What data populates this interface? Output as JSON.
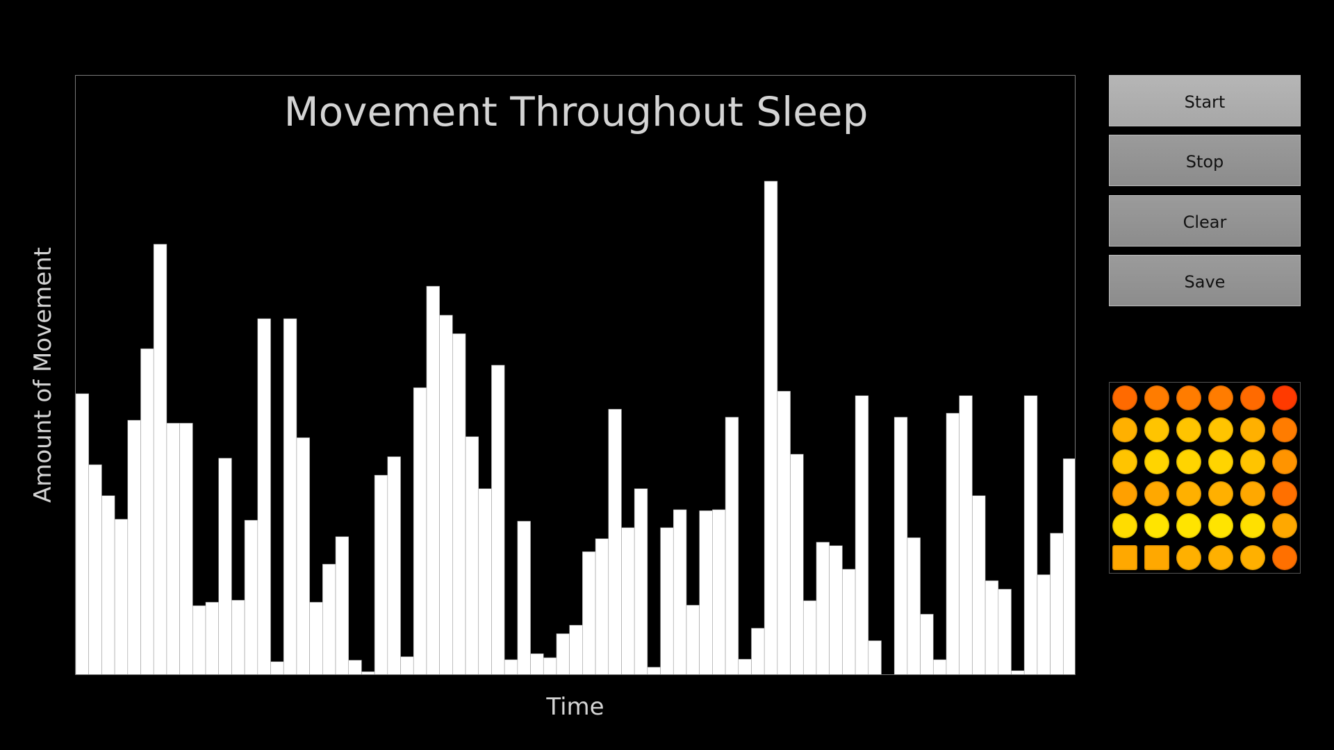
{
  "chart_data": {
    "type": "bar",
    "title": "Movement Throughout Sleep",
    "xlabel": "Time",
    "ylabel": "Amount of Movement",
    "ylim": [
      0,
      100
    ],
    "bar_color": "#ffffff",
    "bar_edge_color": "#9a9a9a",
    "background": "#000000",
    "values": [
      56.4,
      42.2,
      36,
      31.3,
      51.1,
      65.4,
      86.3,
      50.5,
      50.5,
      14,
      14.7,
      43.5,
      15.1,
      31.1,
      71.4,
      2.8,
      71.4,
      47.6,
      14.7,
      22.3,
      27.8,
      3.1,
      0.8,
      40.1,
      43.8,
      3.8,
      57.6,
      77.9,
      72.1,
      68.4,
      47.8,
      37.4,
      62.1,
      3.2,
      30.9,
      4.4,
      3.6,
      8.4,
      10.1,
      24.8,
      27.4,
      53.3,
      29.6,
      37.4,
      1.7,
      29.6,
      33.2,
      14.1,
      33,
      33.2,
      51.7,
      3.3,
      9.5,
      98.9,
      56.9,
      44.3,
      15,
      26.7,
      26,
      21.3,
      56,
      7,
      0.2,
      51.7,
      27.6,
      12.3,
      3.2,
      52.5,
      56,
      36,
      19,
      17.3,
      1,
      56,
      20.2,
      28.5,
      43.4
    ]
  },
  "buttons": {
    "start": "Start",
    "stop": "Stop",
    "clear": "Clear",
    "save": "Save"
  },
  "led_matrix": {
    "rows": [
      [
        "#ff6a00",
        "#ff7c00",
        "#ff7c00",
        "#ff7c00",
        "#ff6a00",
        "#ff3a00"
      ],
      [
        "#ffb000",
        "#ffc400",
        "#ffc400",
        "#ffc400",
        "#ffb000",
        "#ff7c00"
      ],
      [
        "#ffc400",
        "#ffd400",
        "#ffd400",
        "#ffd400",
        "#ffc400",
        "#ff9400"
      ],
      [
        "#ffa000",
        "#ffa800",
        "#ffb000",
        "#ffb000",
        "#ffa800",
        "#ff7000"
      ],
      [
        "#ffdc00",
        "#ffe400",
        "#ffe400",
        "#ffe400",
        "#ffe000",
        "#ffa800"
      ],
      [
        "#ffa800",
        "#ffa800",
        "#ffb000",
        "#ffb000",
        "#ffb000",
        "#ff7000"
      ]
    ],
    "square_cells": [
      [
        5,
        0
      ],
      [
        5,
        1
      ]
    ]
  }
}
